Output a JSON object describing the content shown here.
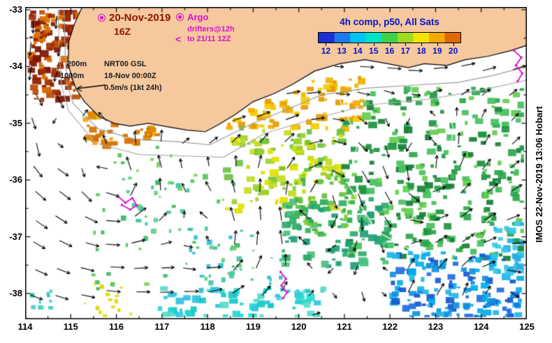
{
  "header": {
    "date": "20-Nov-2019",
    "time": "16Z",
    "argo_title": "Argo",
    "argo_line1": "drifters@12h",
    "argo_line2": "to 21/11 12Z",
    "comp_title": "4h comp, p50, All Sats"
  },
  "colorbar": {
    "tick_labels": [
      "12",
      "13",
      "14",
      "15",
      "16",
      "17",
      "18",
      "19",
      "20"
    ],
    "colors": [
      "#1c2fd4",
      "#1e78f0",
      "#00c2f5",
      "#00e2c8",
      "#3fd14b",
      "#9fdc1f",
      "#f2e400",
      "#f5a800",
      "#e06800"
    ]
  },
  "map_labels": {
    "isobath_200m": "200m",
    "isobath_1000m": "1000m",
    "model_name": "NRT00 GSL",
    "model_time": "18-Nov 00:00Z",
    "model_scale": "0.5m/s (1kt 24h)"
  },
  "axes": {
    "x_ticks": [
      "114",
      "115",
      "116",
      "117",
      "118",
      "119",
      "120",
      "121",
      "122",
      "123",
      "124",
      "125"
    ],
    "y_ticks": [
      "-33",
      "-34",
      "-35",
      "-36",
      "-37",
      "-38"
    ]
  },
  "credit": "IMOS 22-Nov-2019 13:06 Hobart",
  "icons": {
    "argo_marker": "circle-dot",
    "argo_direction": "<"
  },
  "colors": {
    "date_text": "#8b1500",
    "argo_text": "#d911cc",
    "comp_text": "#0013c8",
    "land": "#f5c89e"
  }
}
